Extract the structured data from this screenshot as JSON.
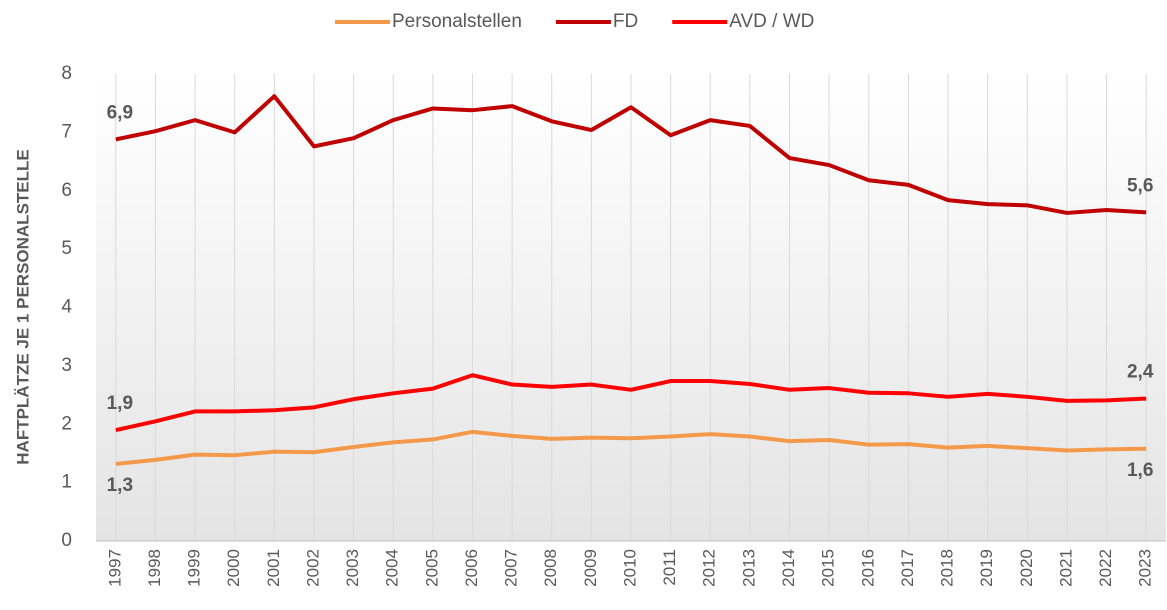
{
  "chart_data": {
    "type": "line",
    "y_label": "HAFTPLÄTZE JE 1 PERSONALSTELLE",
    "categories": [
      "1997",
      "1998",
      "1999",
      "2000",
      "2001",
      "2002",
      "2003",
      "2004",
      "2005",
      "2006",
      "2007",
      "2008",
      "2009",
      "2010",
      "2011",
      "2012",
      "2013",
      "2014",
      "2015",
      "2016",
      "2017",
      "2018",
      "2019",
      "2020",
      "2021",
      "2022",
      "2023"
    ],
    "series": [
      {
        "name": "Personalstellen",
        "color": "#f4994a",
        "values": [
          1.32,
          1.39,
          1.48,
          1.47,
          1.53,
          1.52,
          1.61,
          1.69,
          1.74,
          1.87,
          1.8,
          1.75,
          1.77,
          1.76,
          1.79,
          1.83,
          1.79,
          1.71,
          1.73,
          1.65,
          1.66,
          1.6,
          1.63,
          1.59,
          1.55,
          1.57,
          1.58
        ],
        "value_labels": [
          "1,3",
          null,
          null,
          null,
          null,
          null,
          null,
          null,
          null,
          null,
          null,
          null,
          null,
          null,
          null,
          null,
          null,
          null,
          null,
          null,
          null,
          null,
          null,
          null,
          null,
          null,
          "1,6"
        ]
      },
      {
        "name": "FD",
        "color": "#c00000",
        "values": [
          6.88,
          7.02,
          7.21,
          7.0,
          7.62,
          6.76,
          6.9,
          7.21,
          7.41,
          7.38,
          7.45,
          7.19,
          7.04,
          7.43,
          6.95,
          7.21,
          7.11,
          6.56,
          6.44,
          6.18,
          6.1,
          5.84,
          5.77,
          5.75,
          5.62,
          5.67,
          5.63
        ],
        "value_labels": [
          "6,9",
          null,
          null,
          null,
          null,
          null,
          null,
          null,
          null,
          null,
          null,
          null,
          null,
          null,
          null,
          null,
          null,
          null,
          null,
          null,
          null,
          null,
          null,
          null,
          null,
          null,
          "5,6"
        ]
      },
      {
        "name": "AVD / WD",
        "color": "#ff0000",
        "values": [
          1.9,
          2.05,
          2.22,
          2.22,
          2.24,
          2.29,
          2.43,
          2.53,
          2.61,
          2.84,
          2.68,
          2.64,
          2.68,
          2.59,
          2.74,
          2.74,
          2.69,
          2.59,
          2.62,
          2.54,
          2.53,
          2.47,
          2.52,
          2.47,
          2.4,
          2.41,
          2.44
        ],
        "value_labels": [
          "1,9",
          null,
          null,
          null,
          null,
          null,
          null,
          null,
          null,
          null,
          null,
          null,
          null,
          null,
          null,
          null,
          null,
          null,
          null,
          null,
          null,
          null,
          null,
          null,
          null,
          null,
          "2,4"
        ]
      }
    ],
    "ylim": [
      0,
      8
    ],
    "yticks": [
      0,
      1,
      2,
      3,
      4,
      5,
      6,
      7,
      8
    ],
    "grid": true
  }
}
